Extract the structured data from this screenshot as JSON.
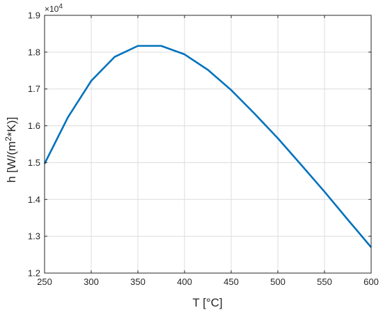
{
  "chart_data": {
    "type": "line",
    "title": "",
    "xlabel": "T [°C]",
    "ylabel_parts": {
      "prefix": "h [W/(m",
      "superscript": "2",
      "suffix": "*K)]"
    },
    "y_exponent": {
      "base": "×10",
      "power": "4",
      "multiplier": 10000
    },
    "xlim": [
      250,
      600
    ],
    "ylim": [
      1.2,
      1.9
    ],
    "xticks": [
      250,
      300,
      350,
      400,
      450,
      500,
      550,
      600
    ],
    "yticks": [
      1.2,
      1.3,
      1.4,
      1.5,
      1.6,
      1.7,
      1.8,
      1.9
    ],
    "xtick_labels": [
      "250",
      "300",
      "350",
      "400",
      "450",
      "500",
      "550",
      "600"
    ],
    "ytick_labels": [
      "1.2",
      "1.3",
      "1.4",
      "1.5",
      "1.6",
      "1.7",
      "1.8",
      "1.9"
    ],
    "grid": true,
    "series": [
      {
        "color": "#0072bd",
        "x": [
          250,
          275,
          300,
          325,
          350,
          375,
          400,
          425,
          450,
          475,
          500,
          525,
          550,
          575,
          600
        ],
        "y": [
          1.497,
          1.623,
          1.722,
          1.787,
          1.817,
          1.817,
          1.794,
          1.752,
          1.697,
          1.633,
          1.566,
          1.494,
          1.421,
          1.345,
          1.27
        ]
      }
    ]
  }
}
